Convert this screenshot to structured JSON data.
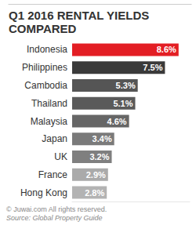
{
  "chart_data": {
    "type": "bar",
    "title": "Q1 2016 RENTAL YIELDS COMPARED",
    "orientation": "horizontal",
    "categories": [
      "Indonesia",
      "Philippines",
      "Cambodia",
      "Thailand",
      "Malaysia",
      "Japan",
      "UK",
      "France",
      "Hong Kong"
    ],
    "values": [
      8.6,
      7.5,
      5.3,
      5.1,
      4.6,
      3.4,
      3.2,
      2.9,
      2.8
    ],
    "value_labels": [
      "8.6%",
      "7.5%",
      "5.3%",
      "5.1%",
      "4.6%",
      "3.4%",
      "3.2%",
      "2.9%",
      "2.8%"
    ],
    "colors": [
      "#e31e24",
      "#3a3a3a",
      "#555555",
      "#5a5a5a",
      "#666666",
      "#7a7a7a",
      "#7f7f7f",
      "#aaaaaa",
      "#b3b3b3"
    ],
    "xlim": [
      0,
      9.5
    ],
    "data_labels": true,
    "tick_labels": "y",
    "grid": false,
    "annotations": [
      "© Juwai.com All rights reserved.",
      "Source: Global Property Guide"
    ]
  }
}
